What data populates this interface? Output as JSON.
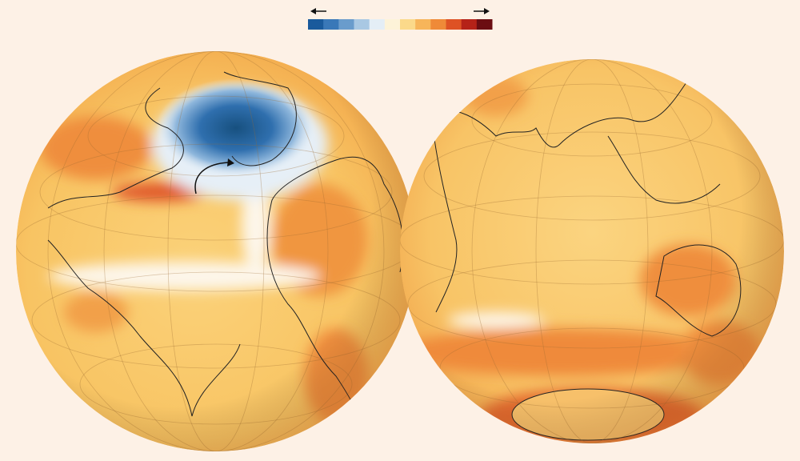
{
  "colorbar": {
    "colors": [
      "#1a5a9c",
      "#3a78b8",
      "#6a9ccc",
      "#a9c8e3",
      "#e4eef6",
      "#fdf3d8",
      "#fbd98a",
      "#f7b55a",
      "#ef8a38",
      "#de5224",
      "#b52218",
      "#6b0d12"
    ]
  }
}
